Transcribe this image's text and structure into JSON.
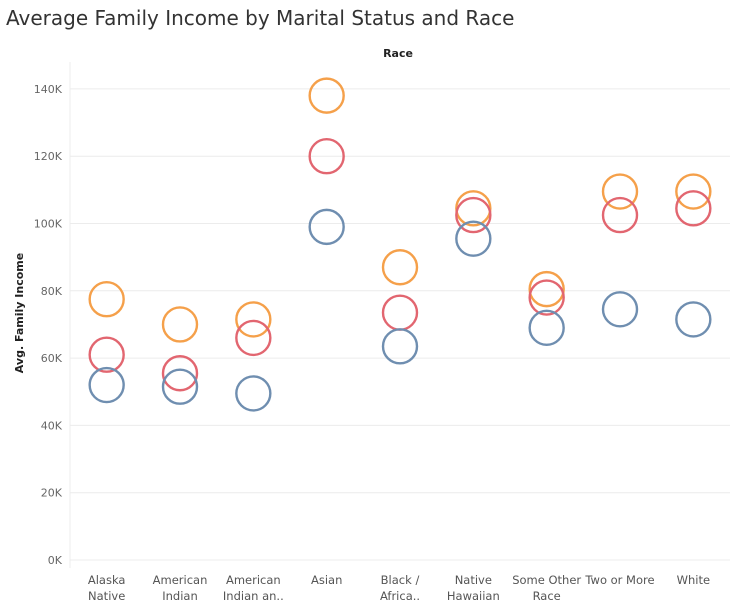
{
  "chart_data": {
    "type": "scatter",
    "title": "Average Family Income by Marital Status and Race",
    "top_label": "Race",
    "ylabel": "Avg. Family Income",
    "ylim": [
      0,
      150000
    ],
    "y_ticks": [
      {
        "value": 0,
        "label": "0K"
      },
      {
        "value": 20000,
        "label": "20K"
      },
      {
        "value": 40000,
        "label": "40K"
      },
      {
        "value": 60000,
        "label": "60K"
      },
      {
        "value": 80000,
        "label": "80K"
      },
      {
        "value": 100000,
        "label": "100K"
      },
      {
        "value": 120000,
        "label": "120K"
      },
      {
        "value": 140000,
        "label": "140K"
      }
    ],
    "grid": true,
    "categories": [
      [
        "Alaska",
        "Native"
      ],
      [
        "American",
        "Indian"
      ],
      [
        "American",
        "Indian an.."
      ],
      [
        "Asian"
      ],
      [
        "Black /",
        "Africa.."
      ],
      [
        "Native",
        "Hawaiian"
      ],
      [
        "Some Other",
        "Race"
      ],
      [
        "Two or More"
      ],
      [
        "White"
      ]
    ],
    "series": [
      {
        "color": "#f5a04a",
        "values": [
          77500,
          70000,
          71500,
          138000,
          87000,
          104500,
          80500,
          109500,
          109500
        ]
      },
      {
        "color": "#e26670",
        "values": [
          61000,
          55500,
          66000,
          120000,
          73500,
          102500,
          78000,
          102500,
          104500
        ]
      },
      {
        "color": "#6f8eb0",
        "values": [
          52000,
          51500,
          49500,
          99000,
          63500,
          95500,
          69000,
          74500,
          71500
        ]
      }
    ]
  }
}
